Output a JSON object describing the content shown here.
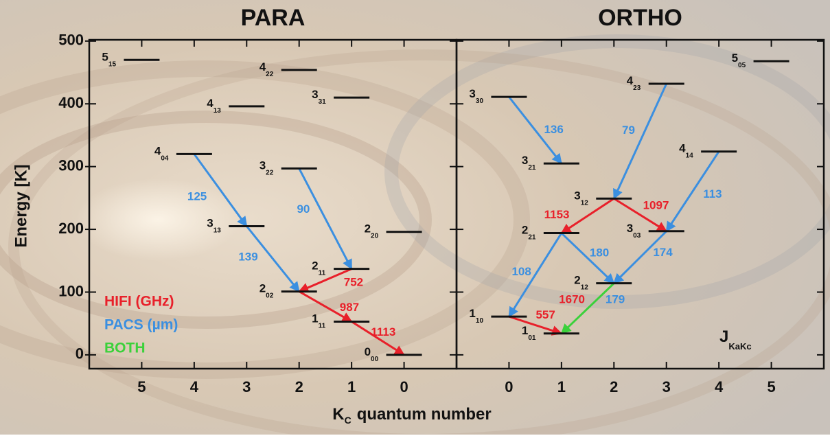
{
  "chart_data": {
    "type": "level-diagram",
    "ylabel": "Energy [K]",
    "xlabel": "K",
    "xlabel_sub": "C",
    "xlabel_rest": "quantum number",
    "ylim": [
      -22,
      502
    ],
    "yticks": [
      0,
      100,
      200,
      300,
      400,
      500
    ],
    "legend": [
      {
        "name": "HIFI (GHz)",
        "color": "#e8202a"
      },
      {
        "name": "PACS (µm)",
        "color": "#3b8fe0"
      },
      {
        "name": "BOTH",
        "color": "#3bd13b"
      }
    ],
    "annotation": "J",
    "annotation_sub": "KaKc",
    "panels": [
      {
        "title": "PARA",
        "xlim": [
          6,
          -1
        ],
        "xticks": [
          5,
          4,
          3,
          2,
          1,
          0
        ],
        "levels": [
          {
            "name": "5",
            "sub": "15",
            "kc": 5,
            "energy": 470
          },
          {
            "name": "4",
            "sub": "22",
            "kc": 2,
            "energy": 454
          },
          {
            "name": "3",
            "sub": "31",
            "kc": 1,
            "energy": 410
          },
          {
            "name": "4",
            "sub": "13",
            "kc": 3,
            "energy": 396
          },
          {
            "name": "4",
            "sub": "04",
            "kc": 4,
            "energy": 320
          },
          {
            "name": "3",
            "sub": "22",
            "kc": 2,
            "energy": 297
          },
          {
            "name": "3",
            "sub": "13",
            "kc": 3,
            "energy": 205
          },
          {
            "name": "2",
            "sub": "20",
            "kc": 0,
            "energy": 196
          },
          {
            "name": "2",
            "sub": "11",
            "kc": 1,
            "energy": 137
          },
          {
            "name": "2",
            "sub": "02",
            "kc": 2,
            "energy": 101
          },
          {
            "name": "1",
            "sub": "11",
            "kc": 1,
            "energy": 53
          },
          {
            "name": "0",
            "sub": "00",
            "kc": 0,
            "energy": 0
          }
        ],
        "transitions": [
          {
            "from": 4,
            "to": 6,
            "color": "#3b8fe0",
            "labels": [
              {
                "text": 125,
                "color": "#3b8fe0"
              }
            ]
          },
          {
            "from": 6,
            "to": 9,
            "color": "#3b8fe0",
            "labels": [
              {
                "text": 139,
                "color": "#3b8fe0"
              }
            ]
          },
          {
            "from": 5,
            "to": 8,
            "color": "#3b8fe0",
            "labels": [
              {
                "text": 90,
                "color": "#3b8fe0"
              }
            ]
          },
          {
            "from": 8,
            "to": 9,
            "color": "#e8202a",
            "labels": [
              {
                "text": 752,
                "color": "#e8202a"
              }
            ]
          },
          {
            "from": 9,
            "to": 10,
            "color": "#e8202a",
            "labels": [
              {
                "text": 987,
                "color": "#e8202a"
              }
            ]
          },
          {
            "from": 10,
            "to": 11,
            "color": "#e8202a",
            "labels": [
              {
                "text": 1113,
                "color": "#e8202a"
              }
            ]
          }
        ]
      },
      {
        "title": "ORTHO",
        "xlim": [
          -1,
          6
        ],
        "xticks": [
          0,
          1,
          2,
          3,
          4,
          5
        ],
        "levels": [
          {
            "name": "5",
            "sub": "05",
            "kc": 5,
            "energy": 468
          },
          {
            "name": "4",
            "sub": "23",
            "kc": 3,
            "energy": 432
          },
          {
            "name": "3",
            "sub": "30",
            "kc": 0,
            "energy": 411
          },
          {
            "name": "4",
            "sub": "14",
            "kc": 4,
            "energy": 324
          },
          {
            "name": "3",
            "sub": "21",
            "kc": 1,
            "energy": 305
          },
          {
            "name": "3",
            "sub": "12",
            "kc": 2,
            "energy": 249
          },
          {
            "name": "3",
            "sub": "03",
            "kc": 3,
            "energy": 197
          },
          {
            "name": "2",
            "sub": "21",
            "kc": 1,
            "energy": 194
          },
          {
            "name": "2",
            "sub": "12",
            "kc": 2,
            "energy": 114
          },
          {
            "name": "1",
            "sub": "10",
            "kc": 0,
            "energy": 61
          },
          {
            "name": "1",
            "sub": "01",
            "kc": 1,
            "energy": 34
          }
        ],
        "transitions": [
          {
            "from": 2,
            "to": 4,
            "color": "#3b8fe0",
            "labels": [
              {
                "text": 136,
                "color": "#3b8fe0"
              }
            ]
          },
          {
            "from": 1,
            "to": 5,
            "color": "#3b8fe0",
            "labels": [
              {
                "text": 79,
                "color": "#3b8fe0"
              }
            ]
          },
          {
            "from": 3,
            "to": 6,
            "color": "#3b8fe0",
            "labels": [
              {
                "text": 113,
                "color": "#3b8fe0"
              }
            ]
          },
          {
            "from": 5,
            "to": 7,
            "color": "#e8202a",
            "labels": [
              {
                "text": 1153,
                "color": "#e8202a"
              }
            ]
          },
          {
            "from": 5,
            "to": 6,
            "color": "#e8202a",
            "labels": [
              {
                "text": 1097,
                "color": "#e8202a"
              }
            ]
          },
          {
            "from": 7,
            "to": 9,
            "color": "#3b8fe0",
            "labels": [
              {
                "text": 108,
                "color": "#3b8fe0"
              }
            ]
          },
          {
            "from": 7,
            "to": 8,
            "color": "#3b8fe0",
            "labels": [
              {
                "text": 180,
                "color": "#3b8fe0"
              }
            ]
          },
          {
            "from": 6,
            "to": 8,
            "color": "#3b8fe0",
            "labels": [
              {
                "text": 174,
                "color": "#3b8fe0"
              }
            ]
          },
          {
            "from": 8,
            "to": 10,
            "color": "#3bd13b",
            "labels": [
              {
                "text": 1670,
                "color": "#e8202a"
              },
              {
                "text": 179,
                "color": "#3b8fe0"
              }
            ]
          },
          {
            "from": 9,
            "to": 10,
            "color": "#e8202a",
            "labels": [
              {
                "text": 557,
                "color": "#e8202a"
              }
            ]
          }
        ]
      }
    ]
  }
}
